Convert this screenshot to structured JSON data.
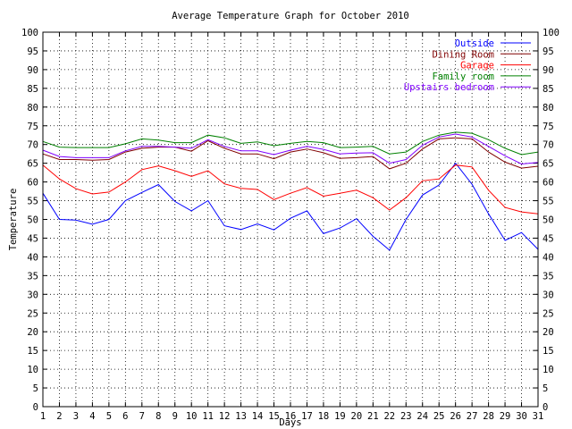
{
  "chart_data": {
    "type": "line",
    "title": "Average Temperature Graph for October 2010",
    "xlabel": "Days",
    "ylabel": "Temperature",
    "x": [
      1,
      2,
      3,
      4,
      5,
      6,
      7,
      8,
      9,
      10,
      11,
      12,
      13,
      14,
      15,
      16,
      17,
      18,
      19,
      20,
      21,
      22,
      23,
      24,
      25,
      26,
      27,
      28,
      29,
      30,
      31
    ],
    "xlim": [
      1,
      31
    ],
    "ylim": [
      0,
      100
    ],
    "y_ticks": [
      0,
      5,
      10,
      15,
      20,
      25,
      30,
      35,
      40,
      45,
      50,
      55,
      60,
      65,
      70,
      75,
      80,
      85,
      90,
      95,
      100
    ],
    "grid": true,
    "legend_position": "top-right",
    "series": [
      {
        "name": "Outside",
        "color": "#0000ff",
        "values": [
          57,
          50,
          49.8,
          48.7,
          50,
          55,
          57.2,
          59.3,
          54.8,
          52.3,
          55,
          48.3,
          47.3,
          48.8,
          47.2,
          50.3,
          52.3,
          46.2,
          47.7,
          50.2,
          45.5,
          41.8,
          50,
          56.5,
          59.2,
          65,
          59.4,
          51.5,
          44.4,
          46.5,
          42
        ]
      },
      {
        "name": "Dining Room",
        "color": "#800000",
        "values": [
          67.5,
          66,
          66,
          65.8,
          66,
          68,
          69,
          69.3,
          69.3,
          68.2,
          71,
          69,
          67.5,
          67.5,
          66.2,
          68,
          68.8,
          67.8,
          66.3,
          66.5,
          66.8,
          63.5,
          65,
          68.8,
          71.5,
          71.8,
          71.5,
          68,
          65.3,
          63.7,
          64.2
        ]
      },
      {
        "name": "Garage",
        "color": "#ff0000",
        "values": [
          64.5,
          60.8,
          58.2,
          56.8,
          57.3,
          60,
          63.3,
          64.3,
          63,
          61.5,
          63,
          59.5,
          58.3,
          58,
          55.3,
          57,
          58.5,
          56.2,
          57,
          57.8,
          55.8,
          52.5,
          55.8,
          60.3,
          60.8,
          64.5,
          64,
          57.8,
          53.2,
          52,
          51.5
        ]
      },
      {
        "name": "Family room",
        "color": "#008000",
        "values": [
          70.8,
          69.3,
          69.2,
          69.2,
          69.2,
          70.2,
          71.5,
          71.2,
          70.5,
          70.5,
          72.5,
          71.8,
          70.3,
          70.7,
          69.7,
          70.3,
          70.8,
          70.5,
          69.2,
          69.3,
          69.5,
          67.5,
          68,
          70.8,
          72.5,
          73.3,
          73,
          71.3,
          69,
          67.3,
          68
        ]
      },
      {
        "name": "Upstairs bedroom",
        "color": "#8000ff",
        "values": [
          68.5,
          66.8,
          66.5,
          66.5,
          66.5,
          68.3,
          69.5,
          69.5,
          69.3,
          69,
          71.3,
          69.5,
          68.3,
          68.3,
          67.3,
          68.5,
          69.5,
          68.7,
          67.5,
          67.7,
          67.8,
          65,
          66,
          69.8,
          72,
          72.8,
          72,
          69.5,
          67,
          64.8,
          65.2
        ]
      }
    ]
  }
}
